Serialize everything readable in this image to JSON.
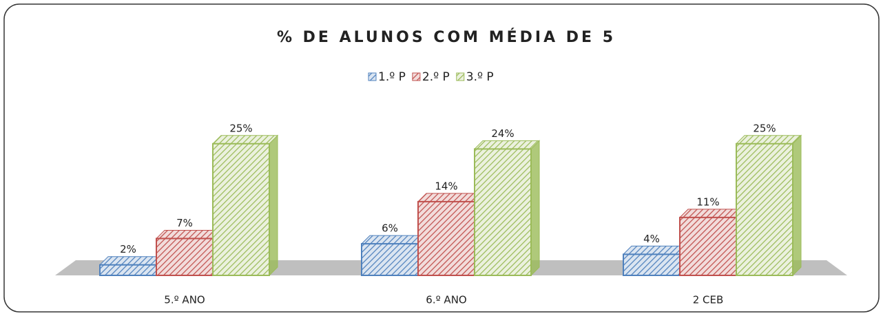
{
  "chart_data": {
    "type": "bar3d",
    "title": "% DE ALUNOS COM MÉDIA DE 5",
    "categories": [
      "5.º ANO",
      "6.º ANO",
      "2 CEB"
    ],
    "series": [
      {
        "name": "1.º P",
        "color": "#4f81bd",
        "values": [
          2,
          6,
          4
        ],
        "value_labels": [
          "2%",
          "6%",
          "4%"
        ]
      },
      {
        "name": "2.º P",
        "color": "#c0504d",
        "values": [
          7,
          14,
          11
        ],
        "value_labels": [
          "7%",
          "14%",
          "11%"
        ]
      },
      {
        "name": "3.º P",
        "color": "#9bbb59",
        "values": [
          25,
          24,
          25
        ],
        "value_labels": [
          "25%",
          "24%",
          "25%"
        ]
      }
    ],
    "legend": "top"
  }
}
